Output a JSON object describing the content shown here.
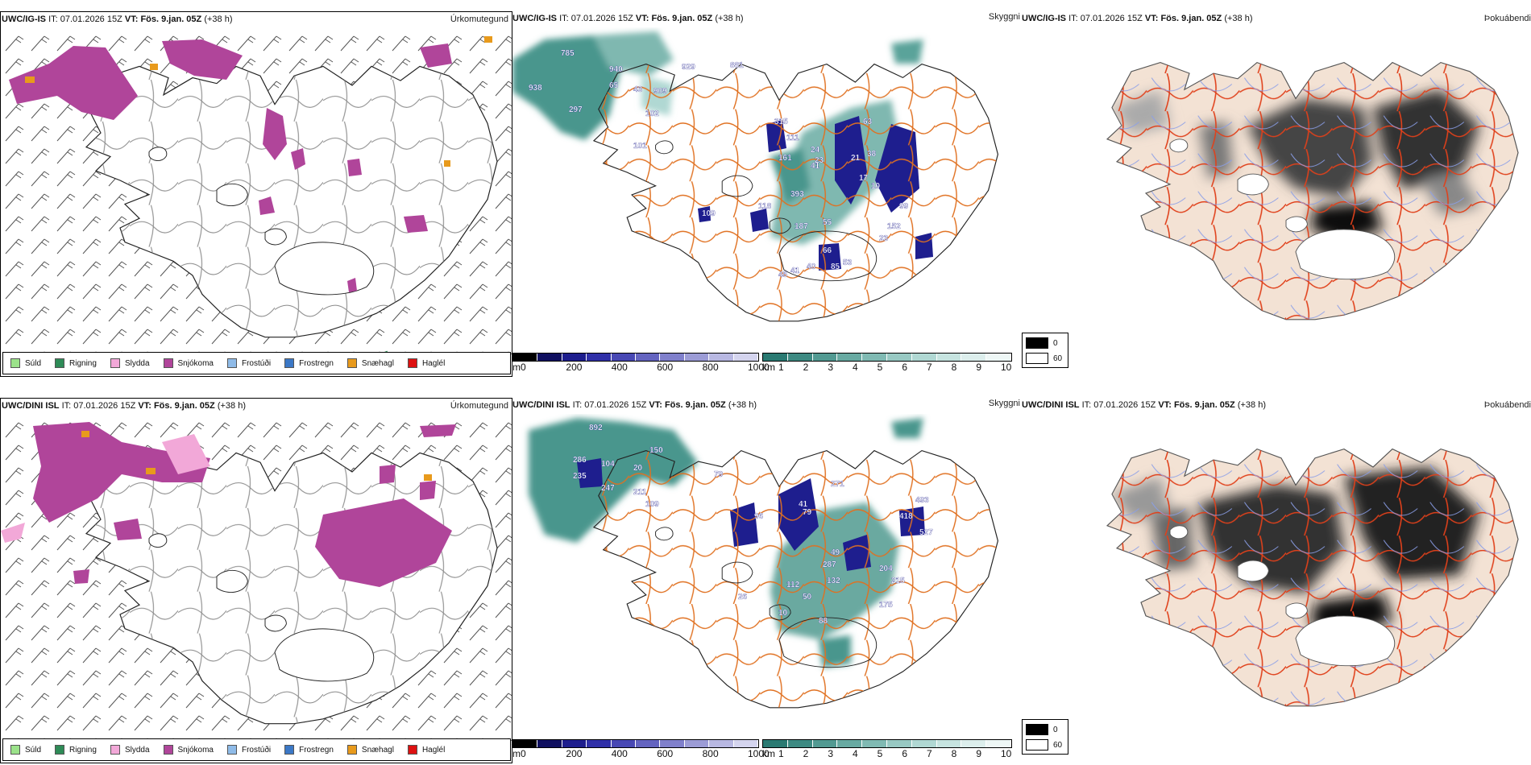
{
  "rows": [
    {
      "model_label": "UWC/IG-IS",
      "it_label": "IT:",
      "it_value": "07.01.2026 15Z",
      "vt_label": "VT:",
      "vt_value": "Fös. 9.jan. 05Z",
      "lead": "(+38 h)",
      "cloud_labels": [
        "785",
        "940",
        "929",
        "881",
        "938",
        "65",
        "43",
        "909",
        "297",
        "102",
        "101",
        "315",
        "111",
        "24",
        "23",
        "41",
        "161",
        "63",
        "38",
        "21",
        "17",
        "10",
        "393",
        "118",
        "109",
        "187",
        "55",
        "99",
        "152",
        "23",
        "66",
        "53",
        "85",
        "40",
        "41",
        "45"
      ]
    },
    {
      "model_label": "UWC/DINI ISL",
      "it_label": "IT:",
      "it_value": "07.01.2026 15Z",
      "vt_label": "VT:",
      "vt_value": "Fös. 9.jan. 05Z",
      "lead": "(+38 h)",
      "cloud_labels": [
        "892",
        "286",
        "150",
        "235",
        "104",
        "20",
        "247",
        "211",
        "79",
        "109",
        "96",
        "41",
        "79",
        "271",
        "418",
        "493",
        "527",
        "49",
        "287",
        "112",
        "132",
        "204",
        "215",
        "175",
        "50",
        "88",
        "26",
        "10"
      ]
    }
  ],
  "panel_titles": {
    "precip_type": "Úrkomutegund",
    "visibility": "Skyggni",
    "fog": "Þokuábendi"
  },
  "precip_legend": [
    {
      "label": "Súld",
      "color": "#9be28a"
    },
    {
      "label": "Rigning",
      "color": "#2e8b57"
    },
    {
      "label": "Slydda",
      "color": "#f2a8d8"
    },
    {
      "label": "Snjókoma",
      "color": "#b0459a"
    },
    {
      "label": "Frostúði",
      "color": "#8fbbe8"
    },
    {
      "label": "Frostregn",
      "color": "#3b78c6"
    },
    {
      "label": "Snæhagl",
      "color": "#e89a1c"
    },
    {
      "label": "Haglél",
      "color": "#dd1111"
    }
  ],
  "cloud_scale": {
    "unit": "m",
    "ticks": [
      "0",
      "200",
      "400",
      "600",
      "800",
      "1000"
    ],
    "colors": [
      "#000000",
      "#101060",
      "#1e1e8e",
      "#3030a8",
      "#4848b4",
      "#6464c0",
      "#8080cc",
      "#9c9cd6",
      "#b8b8e2",
      "#d4d4ee"
    ]
  },
  "vis_scale": {
    "unit": "km",
    "ticks": [
      "1",
      "2",
      "3",
      "4",
      "5",
      "6",
      "7",
      "8",
      "9",
      "10"
    ],
    "colors": [
      "#2a7a72",
      "#3d8a82",
      "#529a92",
      "#68aaa2",
      "#80bab3",
      "#98c9c3",
      "#b0d8d3",
      "#c6e4e0",
      "#dceeec",
      "#eef7f6"
    ]
  },
  "fog_legend": [
    {
      "label": "0",
      "color": "#000000"
    },
    {
      "label": "60",
      "color": "#ffffff"
    }
  ]
}
